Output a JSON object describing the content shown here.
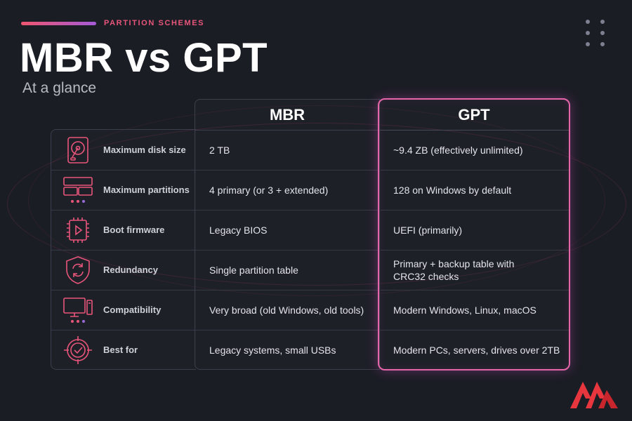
{
  "header": {
    "eyebrow": "PARTITION SCHEMES",
    "title": "MBR vs GPT",
    "subtitle": "At a glance"
  },
  "columns": {
    "mbr": "MBR",
    "gpt": "GPT"
  },
  "rows": [
    {
      "feature": "Maximum disk size",
      "icon": "hard-disk-icon",
      "mbr": "2 TB",
      "gpt": "~9.4 ZB (effectively unlimited)"
    },
    {
      "feature": "Maximum partitions",
      "icon": "partitions-icon",
      "mbr": "4 primary (or 3 + extended)",
      "gpt": "128 on Windows by default"
    },
    {
      "feature": "Boot firmware",
      "icon": "chip-icon",
      "mbr": "Legacy BIOS",
      "gpt": "UEFI (primarily)"
    },
    {
      "feature": "Redundancy",
      "icon": "shield-sync-icon",
      "mbr": "Single partition table",
      "gpt": "Primary + backup table with CRC32 checks"
    },
    {
      "feature": "Compatibility",
      "icon": "computer-icon",
      "mbr": "Very broad (old Windows, old tools)",
      "gpt": "Modern Windows, Linux, macOS"
    },
    {
      "feature": "Best for",
      "icon": "target-icon",
      "mbr": "Legacy systems, small USBs",
      "gpt": "Modern PCs, servers, drives over 2TB"
    }
  ],
  "colors": {
    "accent_pink": "#e8557a",
    "accent_purple": "#a45ad8",
    "gpt_border": "#e466a8",
    "background": "#1b1d25",
    "logo_red": "#e8363f"
  }
}
